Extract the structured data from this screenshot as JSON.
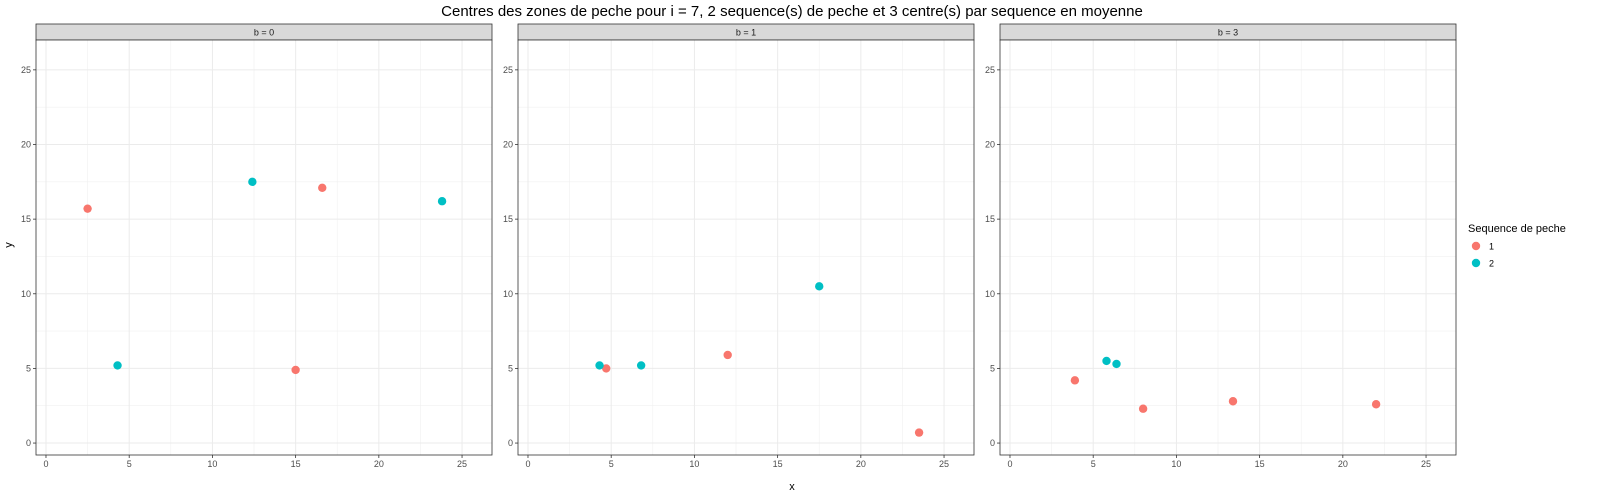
{
  "chart_data": {
    "type": "scatter",
    "title": "Centres des zones de peche pour i = 7, 2 sequence(s) de peche et 3 centre(s) par sequence en moyenne",
    "xlabel": "x",
    "ylabel": "y",
    "xlim": [
      -0.6,
      26.8
    ],
    "ylim": [
      -0.8,
      27
    ],
    "xticks": [
      0,
      5,
      10,
      15,
      20,
      25
    ],
    "yticks": [
      0,
      5,
      10,
      15,
      20,
      25
    ],
    "grid": true,
    "legend": {
      "title": "Sequence de peche",
      "placement": "right",
      "entries": [
        {
          "label": "1",
          "color": "#F8766D"
        },
        {
          "label": "2",
          "color": "#00BFC4"
        }
      ]
    },
    "facets": [
      {
        "label": "b = 0",
        "series": [
          {
            "name": "1",
            "color": "#F8766D",
            "points": [
              [
                2.5,
                15.7
              ],
              [
                16.6,
                17.1
              ],
              [
                15.0,
                4.9
              ]
            ]
          },
          {
            "name": "2",
            "color": "#00BFC4",
            "points": [
              [
                12.4,
                17.5
              ],
              [
                23.8,
                16.2
              ],
              [
                4.3,
                5.2
              ]
            ]
          }
        ]
      },
      {
        "label": "b = 1",
        "series": [
          {
            "name": "1",
            "color": "#F8766D",
            "points": [
              [
                4.7,
                5.0
              ],
              [
                12.0,
                5.9
              ],
              [
                23.5,
                0.7
              ]
            ]
          },
          {
            "name": "2",
            "color": "#00BFC4",
            "points": [
              [
                4.3,
                5.2
              ],
              [
                6.8,
                5.2
              ],
              [
                17.5,
                10.5
              ]
            ]
          }
        ]
      },
      {
        "label": "b = 3",
        "series": [
          {
            "name": "1",
            "color": "#F8766D",
            "points": [
              [
                3.9,
                4.2
              ],
              [
                8.0,
                2.3
              ],
              [
                13.4,
                2.8
              ],
              [
                22.0,
                2.6
              ]
            ]
          },
          {
            "name": "2",
            "color": "#00BFC4",
            "points": [
              [
                5.8,
                5.5
              ],
              [
                6.4,
                5.3
              ]
            ]
          }
        ]
      }
    ]
  }
}
